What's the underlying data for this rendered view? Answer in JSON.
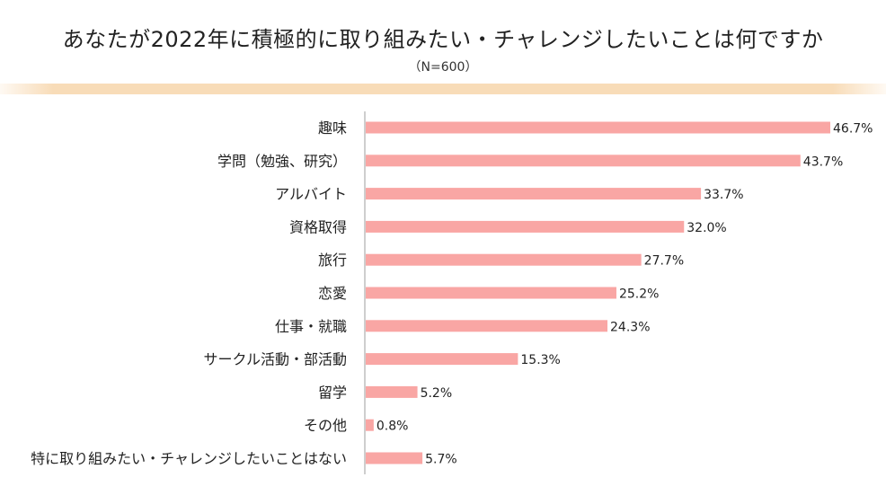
{
  "header": {
    "title": "あなたが2022年に積極的に取り組みたい・チャレンジしたいことは何ですか",
    "subtitle": "（N=600）"
  },
  "colors": {
    "bar": "#f9a6a4",
    "axis": "#bdbdbd",
    "accent_rule": "#f8dcb8"
  },
  "chart_data": {
    "type": "bar",
    "orientation": "horizontal",
    "unit": "%",
    "categories": [
      "趣味",
      "学問（勉強、研究）",
      "アルバイト",
      "資格取得",
      "旅行",
      "恋愛",
      "仕事・就職",
      "サークル活動・部活動",
      "留学",
      "その他",
      "特に取り組みたい・チャレンジしたいことはない"
    ],
    "values": [
      46.7,
      43.7,
      33.7,
      32.0,
      27.7,
      25.2,
      24.3,
      15.3,
      5.2,
      0.8,
      5.7
    ],
    "value_labels": [
      "46.7%",
      "43.7%",
      "33.7%",
      "32.0%",
      "27.7%",
      "25.2%",
      "24.3%",
      "15.3%",
      "5.2%",
      "0.8%",
      "5.7%"
    ],
    "xlim": [
      0,
      46.7
    ],
    "grid": false,
    "legend": false
  }
}
